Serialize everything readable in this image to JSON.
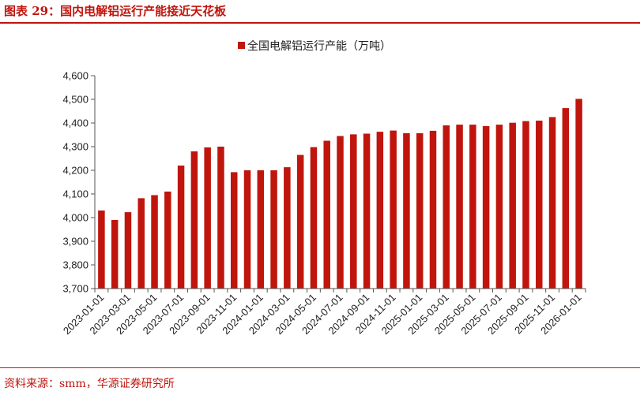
{
  "header": {
    "title": "图表 29：国内电解铝运行产能接近天花板"
  },
  "footer": {
    "source": "资料来源：smm，华源证券研究所"
  },
  "colors": {
    "accent": "#c0140c",
    "bar": "#c0150d"
  },
  "chart_data": {
    "type": "bar",
    "legend_position": "top-center",
    "grid": false,
    "ylim": [
      3700,
      4600
    ],
    "yticks": [
      3700,
      3800,
      3900,
      4000,
      4100,
      4200,
      4300,
      4400,
      4500,
      4600
    ],
    "ytick_labels": [
      "3,700",
      "3,800",
      "3,900",
      "4,000",
      "4,100",
      "4,200",
      "4,300",
      "4,400",
      "4,500",
      "4,600"
    ],
    "categories": [
      "2023-01",
      "2023-02",
      "2023-03",
      "2023-04",
      "2023-05",
      "2023-06",
      "2023-07",
      "2023-08",
      "2023-09",
      "2023-10",
      "2023-11",
      "2023-12",
      "2024-01",
      "2024-02",
      "2024-03",
      "2024-04",
      "2024-05",
      "2024-06",
      "2024-07",
      "2024-08",
      "2024-09",
      "2024-10",
      "2024-11",
      "2024-12",
      "2025-01",
      "2025-02",
      "2025-03",
      "2025-04",
      "2025-05",
      "2025-06",
      "2025-07",
      "2025-08",
      "2025-09",
      "2025-10",
      "2025-11",
      "2025-12",
      "2026-01"
    ],
    "xtick_labels": [
      "2023-01-01",
      "2023-03-01",
      "2023-05-01",
      "2023-07-01",
      "2023-09-01",
      "2023-11-01",
      "2024-01-01",
      "2024-03-01",
      "2024-05-01",
      "2024-07-01",
      "2024-09-01",
      "2024-11-01",
      "2025-01-01",
      "2025-03-01",
      "2025-05-01",
      "2025-07-01",
      "2025-09-01",
      "2025-11-01",
      "2026-01-01"
    ],
    "series": [
      {
        "name": "全国电解铝运行产能（万吨）",
        "values": [
          4030,
          3990,
          4023,
          4082,
          4095,
          4110,
          4220,
          4280,
          4297,
          4300,
          4192,
          4200,
          4200,
          4200,
          4213,
          4265,
          4298,
          4325,
          4345,
          4352,
          4355,
          4363,
          4368,
          4357,
          4357,
          4367,
          4390,
          4393,
          4393,
          4387,
          4393,
          4401,
          4408,
          4410,
          4425,
          4463,
          4502
        ]
      }
    ]
  }
}
